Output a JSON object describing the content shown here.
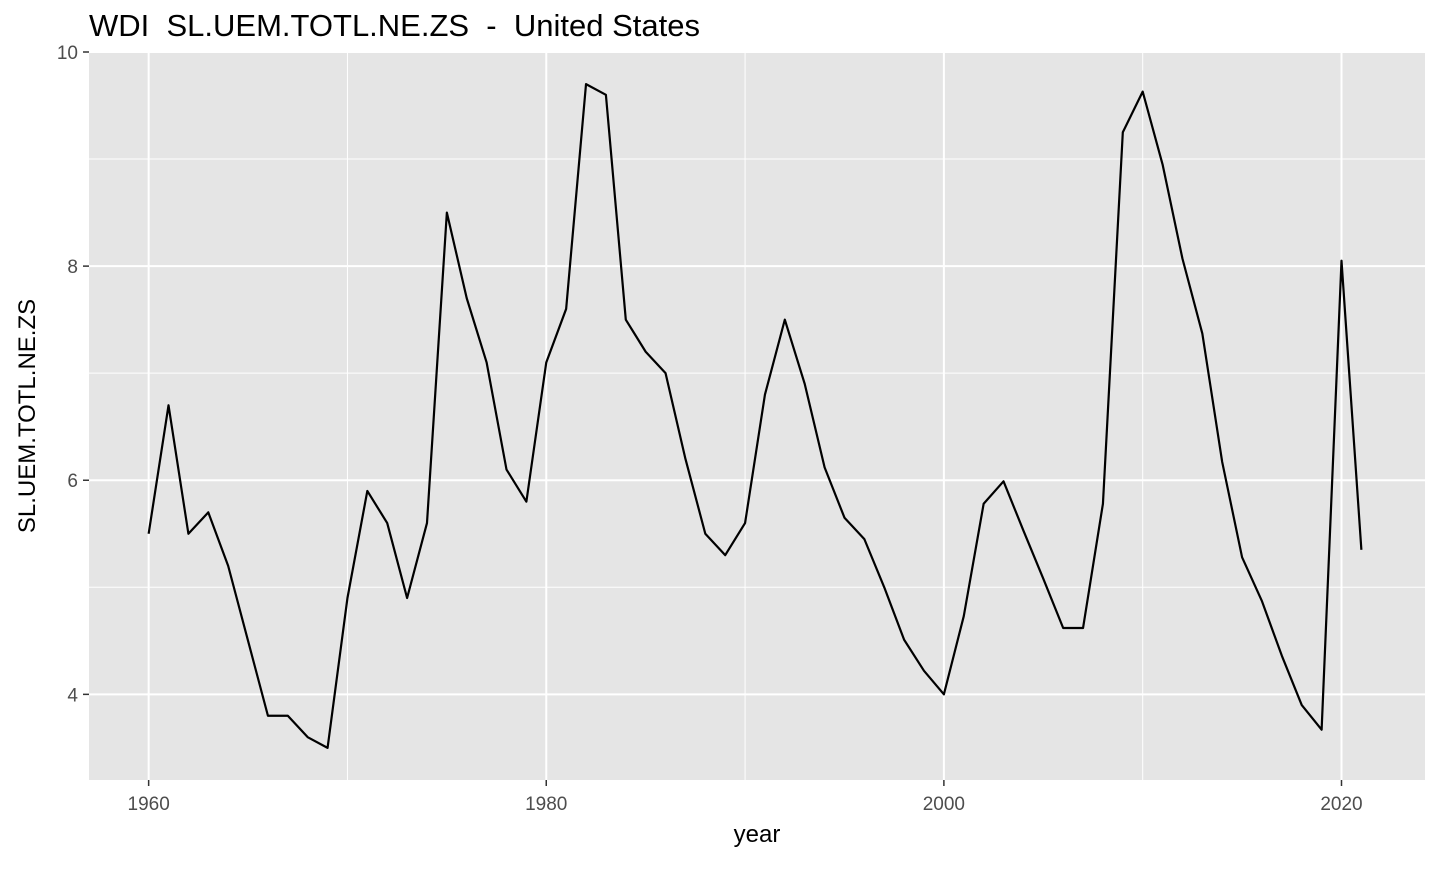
{
  "chart_data": {
    "type": "line",
    "title": "WDI  SL.UEM.TOTL.NE.ZS  -  United States",
    "xlabel": "year",
    "ylabel": "SL.UEM.TOTL.NE.ZS",
    "xlim": [
      1957,
      2024.2
    ],
    "ylim": [
      3.2,
      10
    ],
    "x_ticks": [
      1960,
      1980,
      2000,
      2020
    ],
    "y_ticks": [
      4,
      6,
      8,
      10
    ],
    "x_minor": [
      1970,
      1990,
      2010
    ],
    "y_minor": [
      5,
      7,
      9
    ],
    "grid": true,
    "background": "#e5e5e5",
    "grid_color": "#ffffff",
    "line_color": "#000000",
    "series": [
      {
        "x": [
          1960,
          1961,
          1962,
          1963,
          1964,
          1965,
          1966,
          1967,
          1968,
          1969,
          1970,
          1971,
          1972,
          1973,
          1974,
          1975,
          1976,
          1977,
          1978,
          1979,
          1980,
          1981,
          1982,
          1983,
          1984,
          1985,
          1986,
          1987,
          1988,
          1989,
          1990,
          1991,
          1992,
          1993,
          1994,
          1995,
          1996,
          1997,
          1998,
          1999,
          2000,
          2001,
          2002,
          2003,
          2004,
          2005,
          2006,
          2007,
          2008,
          2009,
          2010,
          2011,
          2012,
          2013,
          2014,
          2015,
          2016,
          2017,
          2018,
          2019,
          2020,
          2021
        ],
        "values": [
          5.5,
          6.7,
          5.5,
          5.7,
          5.2,
          4.5,
          3.8,
          3.8,
          3.6,
          3.5,
          4.9,
          5.9,
          5.6,
          4.9,
          5.6,
          8.5,
          7.7,
          7.1,
          6.1,
          5.8,
          7.1,
          7.6,
          9.7,
          9.6,
          7.5,
          7.2,
          7.0,
          6.2,
          5.5,
          5.3,
          5.6,
          6.8,
          7.5,
          6.9,
          6.12,
          5.65,
          5.45,
          5.0,
          4.51,
          4.22,
          4.0,
          4.73,
          5.78,
          5.99,
          5.53,
          5.08,
          4.62,
          4.62,
          5.78,
          9.25,
          9.63,
          8.95,
          8.07,
          7.37,
          6.17,
          5.28,
          4.87,
          4.36,
          3.9,
          3.67,
          8.05,
          5.35
        ]
      }
    ]
  }
}
